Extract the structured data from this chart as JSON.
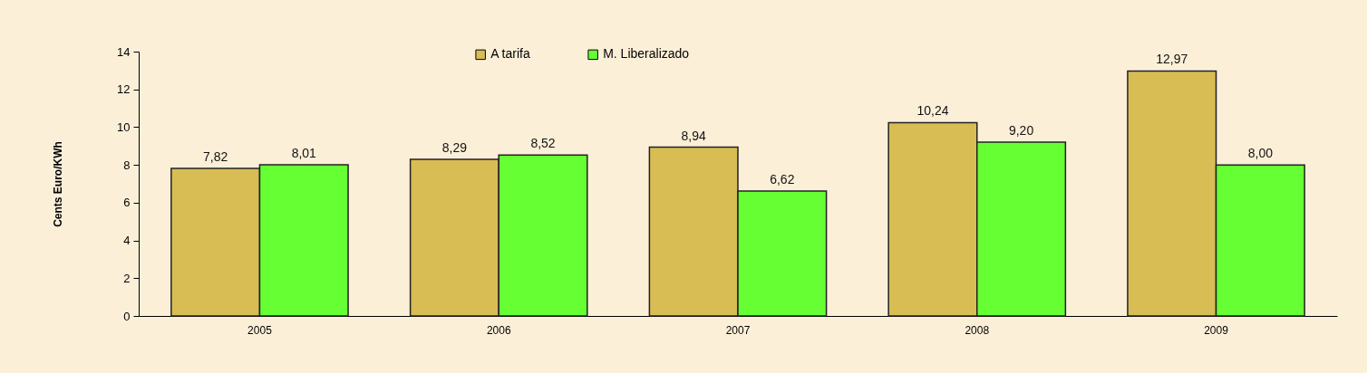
{
  "chart_data": {
    "type": "bar",
    "ylabel": "Cents Euro/KWh",
    "categories": [
      "2005",
      "2006",
      "2007",
      "2008",
      "2009"
    ],
    "series": [
      {
        "name": "A tarifa",
        "color": "#d8bd55",
        "values": [
          7.82,
          8.29,
          8.94,
          10.24,
          12.97
        ],
        "value_labels": [
          "7,82",
          "8,29",
          "8,94",
          "10,24",
          "12,97"
        ]
      },
      {
        "name": "M. Liberalizado",
        "color": "#66ff33",
        "values": [
          8.01,
          8.52,
          6.62,
          9.2,
          8.0
        ],
        "value_labels": [
          "8,01",
          "8,52",
          "6,62",
          "9,20",
          "8,00"
        ]
      }
    ],
    "ylim": [
      0,
      14
    ],
    "yticks": [
      0,
      2,
      4,
      6,
      8,
      10,
      12,
      14
    ],
    "grid": false,
    "legend": "top"
  }
}
